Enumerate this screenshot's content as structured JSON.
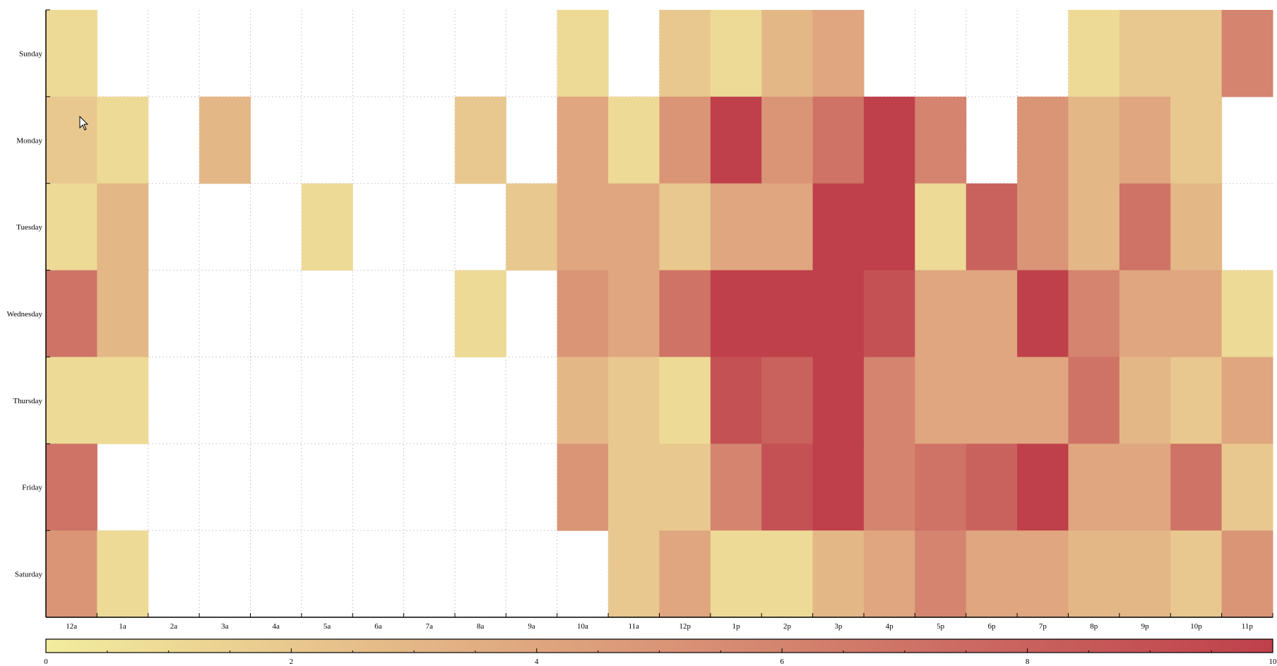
{
  "chart_data": {
    "type": "heatmap",
    "title": "",
    "xlabel": "",
    "ylabel": "",
    "x_categories": [
      "12a",
      "1a",
      "2a",
      "3a",
      "4a",
      "5a",
      "6a",
      "7a",
      "8a",
      "9a",
      "10a",
      "11a",
      "12p",
      "1p",
      "2p",
      "3p",
      "4p",
      "5p",
      "6p",
      "7p",
      "8p",
      "9p",
      "10p",
      "11p"
    ],
    "y_categories": [
      "Sunday",
      "Monday",
      "Tuesday",
      "Wednesday",
      "Thursday",
      "Friday",
      "Saturday"
    ],
    "values": [
      [
        1,
        null,
        null,
        null,
        null,
        null,
        null,
        null,
        null,
        null,
        1,
        null,
        2,
        1,
        3,
        4,
        null,
        null,
        null,
        null,
        1,
        2,
        2,
        6
      ],
      [
        2,
        1,
        null,
        3,
        null,
        null,
        null,
        null,
        2,
        null,
        4,
        1,
        5,
        10,
        5,
        7,
        10,
        6,
        null,
        5,
        3,
        4,
        2,
        null
      ],
      [
        1,
        3,
        null,
        null,
        null,
        1,
        null,
        null,
        null,
        2,
        4,
        4,
        2,
        4,
        4,
        10,
        10,
        1,
        8,
        5,
        3,
        7,
        3,
        null
      ],
      [
        7,
        3,
        null,
        null,
        null,
        null,
        null,
        null,
        1,
        null,
        5,
        4,
        7,
        10,
        10,
        10,
        9,
        4,
        4,
        10,
        6,
        4,
        4,
        1
      ],
      [
        1,
        1,
        null,
        null,
        null,
        null,
        null,
        null,
        null,
        null,
        3,
        2,
        1,
        9,
        8,
        10,
        6,
        4,
        4,
        4,
        7,
        3,
        2,
        4
      ],
      [
        7,
        null,
        null,
        null,
        null,
        null,
        null,
        null,
        null,
        null,
        5,
        2,
        2,
        6,
        9,
        10,
        6,
        7,
        8,
        10,
        4,
        4,
        7,
        2
      ],
      [
        5,
        1,
        null,
        null,
        null,
        null,
        null,
        null,
        null,
        null,
        null,
        2,
        4,
        1,
        1,
        3,
        4,
        6,
        4,
        4,
        3,
        3,
        2,
        5
      ]
    ],
    "colorbar": {
      "range": [
        0,
        10
      ],
      "ticks": [
        "0",
        "2",
        "4",
        "6",
        "8",
        "10"
      ],
      "colors": [
        "#f2ec9e",
        "#e6bf8a",
        "#da9577",
        "#cb6a62",
        "#bf404b"
      ]
    },
    "grid": true,
    "grid_color": "#dcc6d6"
  }
}
